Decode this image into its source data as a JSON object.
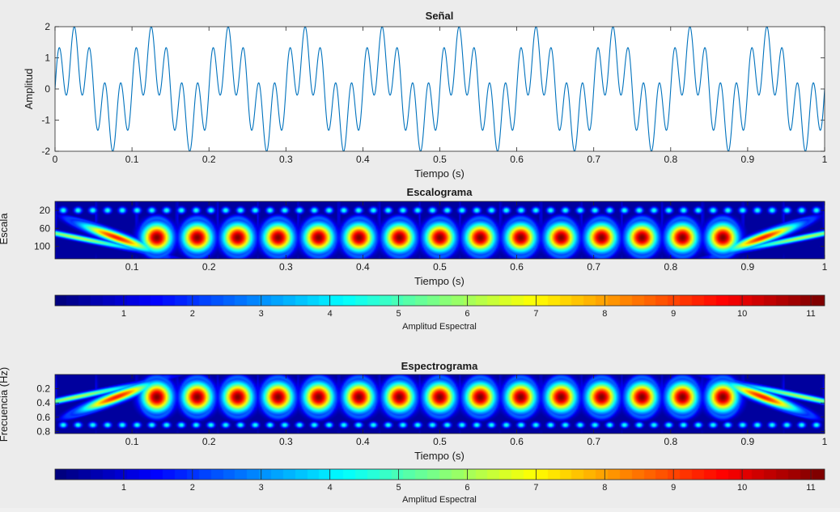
{
  "chart_data": [
    {
      "type": "line",
      "title": "Señal",
      "xlabel": "Tiempo (s)",
      "ylabel": "Amplitud",
      "xlim": [
        0,
        1
      ],
      "ylim": [
        -2,
        2
      ],
      "x_ticks": [
        "0",
        "0.1",
        "0.2",
        "0.3",
        "0.4",
        "0.5",
        "0.6",
        "0.7",
        "0.8",
        "0.9",
        "1"
      ],
      "y_ticks": [
        "-2",
        "-1",
        "0",
        "1",
        "2"
      ],
      "series": [
        {
          "color": "#0072bd",
          "formula": "sin(2π·10·t) + sin(2π·50·t)",
          "components_hz": [
            10,
            50
          ],
          "amplitudes": [
            1,
            1
          ]
        }
      ]
    },
    {
      "type": "heatmap",
      "title": "Escalograma",
      "xlabel": "Tiempo (s)",
      "ylabel": "Escala",
      "x_ticks": [
        "0.1",
        "0.2",
        "0.3",
        "0.4",
        "0.5",
        "0.6",
        "0.7",
        "0.8",
        "0.9",
        "1"
      ],
      "y_ticks": [
        "20",
        "60",
        "100"
      ],
      "y_direction": "reversed",
      "colormap": "jet",
      "colorbar": {
        "label": "Amplitud Espectral",
        "ticks": [
          "1",
          "2",
          "3",
          "4",
          "5",
          "6",
          "7",
          "8",
          "9",
          "10",
          "11"
        ],
        "range": [
          0,
          11.2
        ],
        "placement": "below"
      }
    },
    {
      "type": "heatmap",
      "title": "Espectrograma",
      "xlabel": "Tiempo (s)",
      "ylabel": "Frecuencia (Hz)",
      "x_ticks": [
        "0.1",
        "0.2",
        "0.3",
        "0.4",
        "0.5",
        "0.6",
        "0.7",
        "0.8",
        "0.9",
        "1"
      ],
      "y_ticks": [
        "0.2",
        "0.4",
        "0.6",
        "0.8"
      ],
      "y_direction": "reversed",
      "colormap": "jet",
      "colorbar": {
        "label": "Amplitud Espectral",
        "ticks": [
          "1",
          "2",
          "3",
          "4",
          "5",
          "6",
          "7",
          "8",
          "9",
          "10",
          "11"
        ],
        "range": [
          0,
          11.2
        ],
        "placement": "below"
      }
    }
  ]
}
